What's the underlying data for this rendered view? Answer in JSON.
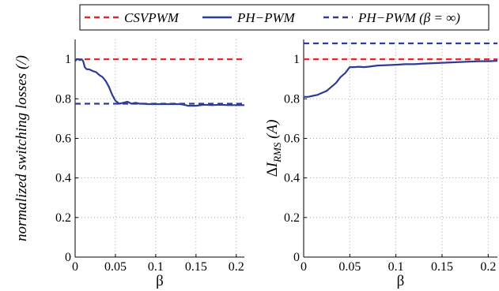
{
  "chart_data": [
    {
      "type": "line",
      "xlabel": "β",
      "ylabel": "normalized switching losses (/)",
      "xlim": [
        0,
        0.21
      ],
      "ylim": [
        0,
        1.1
      ],
      "xticks": [
        0,
        0.05,
        0.1,
        0.15,
        0.2
      ],
      "xtick_labels": [
        "0",
        "0.05",
        "0.1",
        "0.15",
        "0.2"
      ],
      "yticks": [
        0,
        0.2,
        0.4,
        0.6,
        0.8,
        1
      ],
      "ytick_labels": [
        "0",
        "0.2",
        "0.4",
        "0.6",
        "0.8",
        "1"
      ],
      "grid": true,
      "series": [
        {
          "name": "CSVPWM",
          "color": "#e8272b",
          "dash": "dashed",
          "x": [
            0,
            0.21
          ],
          "y": [
            1,
            1
          ]
        },
        {
          "name": "PH−PWM",
          "color": "#2e3c96",
          "dash": "solid",
          "x": [
            0,
            0.002,
            0.004,
            0.006,
            0.008,
            0.01,
            0.012,
            0.014,
            0.018,
            0.022,
            0.026,
            0.03,
            0.034,
            0.038,
            0.042,
            0.046,
            0.05,
            0.055,
            0.06,
            0.065,
            0.07,
            0.075,
            0.08,
            0.085,
            0.09,
            0.1,
            0.11,
            0.12,
            0.13,
            0.135,
            0.14,
            0.15,
            0.16,
            0.17,
            0.18,
            0.19,
            0.2,
            0.21
          ],
          "y": [
            0.99,
            1.0,
            1.0,
            0.995,
            1.0,
            0.99,
            0.96,
            0.95,
            0.948,
            0.94,
            0.935,
            0.92,
            0.91,
            0.89,
            0.86,
            0.82,
            0.79,
            0.775,
            0.78,
            0.785,
            0.775,
            0.78,
            0.775,
            0.775,
            0.773,
            0.773,
            0.773,
            0.773,
            0.773,
            0.77,
            0.765,
            0.765,
            0.77,
            0.768,
            0.77,
            0.768,
            0.768,
            0.768
          ]
        },
        {
          "name": "PH−PWM (β = ∞)",
          "color": "#2e3c96",
          "dash": "dashed",
          "x": [
            0,
            0.21
          ],
          "y": [
            0.775,
            0.775
          ]
        }
      ]
    },
    {
      "type": "line",
      "xlabel": "β",
      "ylabel_main": "ΔI",
      "ylabel_sub": "RMS",
      "ylabel_tail": " (A)",
      "xlim": [
        0,
        0.21
      ],
      "ylim": [
        0,
        1.1
      ],
      "xticks": [
        0,
        0.05,
        0.1,
        0.15,
        0.2
      ],
      "xtick_labels": [
        "0",
        "0.05",
        "0.1",
        "0.15",
        "0.2"
      ],
      "yticks": [
        0,
        0.2,
        0.4,
        0.6,
        0.8,
        1
      ],
      "ytick_labels": [
        "0",
        "0.2",
        "0.4",
        "0.6",
        "0.8",
        "1"
      ],
      "grid": true,
      "series": [
        {
          "name": "CSVPWM",
          "color": "#e8272b",
          "dash": "dashed",
          "x": [
            0,
            0.21
          ],
          "y": [
            1.0,
            1.0
          ]
        },
        {
          "name": "PH−PWM",
          "color": "#2e3c96",
          "dash": "solid",
          "x": [
            0,
            0.005,
            0.01,
            0.015,
            0.02,
            0.025,
            0.03,
            0.035,
            0.04,
            0.045,
            0.05,
            0.055,
            0.06,
            0.065,
            0.07,
            0.075,
            0.08,
            0.09,
            0.1,
            0.11,
            0.12,
            0.13,
            0.14,
            0.15,
            0.16,
            0.17,
            0.18,
            0.19,
            0.2,
            0.21
          ],
          "y": [
            0.81,
            0.81,
            0.815,
            0.82,
            0.83,
            0.84,
            0.86,
            0.88,
            0.91,
            0.93,
            0.96,
            0.96,
            0.962,
            0.96,
            0.962,
            0.965,
            0.968,
            0.97,
            0.972,
            0.975,
            0.975,
            0.978,
            0.98,
            0.982,
            0.984,
            0.986,
            0.988,
            0.99,
            0.99,
            0.992
          ]
        },
        {
          "name": "PH−PWM (β = ∞)",
          "color": "#2e3c96",
          "dash": "dashed",
          "x": [
            0,
            0.21
          ],
          "y": [
            1.08,
            1.08
          ]
        }
      ]
    }
  ],
  "legend": {
    "placement": "top-center",
    "entries": [
      {
        "label": "CSVPWM",
        "color": "#e8272b",
        "dash": "dashed"
      },
      {
        "label": "PH−PWM",
        "color": "#2e3c96",
        "dash": "solid"
      },
      {
        "label": "PH−PWM (β = ∞)",
        "color": "#2e3c96",
        "dash": "dashed"
      }
    ]
  }
}
